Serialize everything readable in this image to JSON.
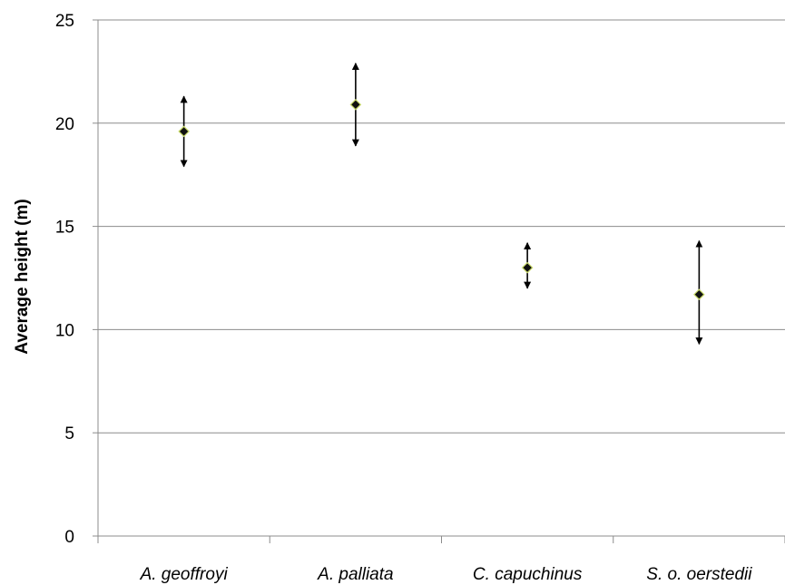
{
  "chart_data": {
    "type": "scatter",
    "title": "",
    "xlabel": "",
    "ylabel": "Average height (m)",
    "ylim": [
      0,
      25
    ],
    "yticks": [
      0,
      5,
      10,
      15,
      20,
      25
    ],
    "categories": [
      "A. geoffroyi",
      "A. palliata",
      "C. capuchinus",
      "S. o. oerstedii"
    ],
    "series": [
      {
        "values": [
          19.6,
          20.9,
          13.0,
          11.7
        ],
        "error_low": [
          17.9,
          18.9,
          12.0,
          9.3
        ],
        "error_high": [
          21.3,
          22.9,
          14.2,
          14.3
        ]
      }
    ],
    "grid": "horizontal",
    "legend": "none"
  },
  "colors": {
    "marker_fill": "#111111",
    "marker_edge": "#c8d96a",
    "gridline": "#8c8c8c",
    "axis": "#8c8c8c",
    "error_bar": "#000000"
  }
}
